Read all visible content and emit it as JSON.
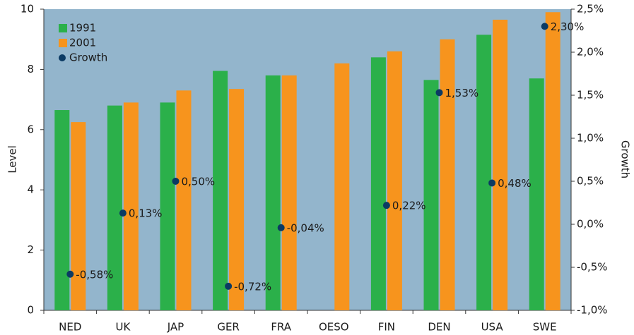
{
  "chart_data": {
    "type": "bar",
    "categories": [
      "NED",
      "UK",
      "JAP",
      "GER",
      "FRA",
      "OESO",
      "FIN",
      "DEN",
      "USA",
      "SWE"
    ],
    "series": [
      {
        "name": "1991",
        "color": "#2bb04a",
        "values": [
          6.65,
          6.8,
          6.9,
          7.95,
          7.8,
          null,
          8.4,
          7.65,
          9.15,
          7.7
        ]
      },
      {
        "name": "2001",
        "color": "#f7941d",
        "values": [
          6.25,
          6.9,
          7.3,
          7.35,
          7.8,
          8.2,
          8.6,
          9.0,
          9.65,
          9.9
        ]
      },
      {
        "name": "Growth",
        "color": "#0b3a63",
        "type": "scatter",
        "axis": "y2",
        "values": [
          -0.58,
          0.13,
          0.5,
          -0.72,
          -0.04,
          null,
          0.22,
          1.53,
          0.48,
          2.3
        ],
        "value_labels": [
          "-0,58%",
          "0,13%",
          "0,50%",
          "-0,72%",
          "-0,04%",
          null,
          "0,22%",
          "1,53%",
          "0,48%",
          "2,30%"
        ]
      }
    ],
    "ylabel": "Level",
    "y2label": "Growth",
    "ylim": [
      0,
      10
    ],
    "yticks": [
      0,
      2,
      4,
      6,
      8,
      10
    ],
    "y2lim": [
      -1,
      2.5
    ],
    "y2ticks": [
      {
        "value": -1,
        "label": "-1,0%"
      },
      {
        "value": -0.5,
        "label": "-0,5%"
      },
      {
        "value": 0,
        "label": "0,0%"
      },
      {
        "value": 0.5,
        "label": "0,5%"
      },
      {
        "value": 1,
        "label": "1,0%"
      },
      {
        "value": 1.5,
        "label": "1,5%"
      },
      {
        "value": 2,
        "label": "2,0%"
      },
      {
        "value": 2.5,
        "label": "2,5%"
      }
    ],
    "plot_background": "#93b5cc",
    "legend": "top-left"
  }
}
